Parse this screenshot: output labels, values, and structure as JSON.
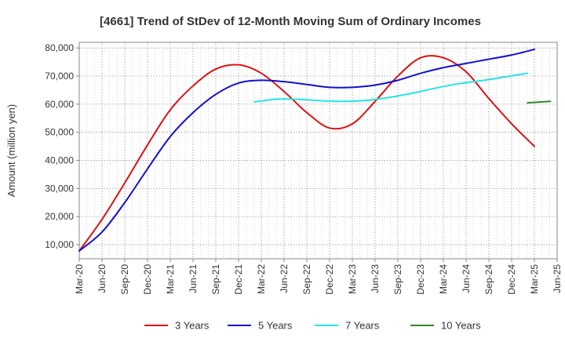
{
  "chart_data": {
    "type": "line",
    "title": "[4661]  Trend of StDev of 12-Month Moving Sum of Ordinary Incomes",
    "xlabel": "",
    "ylabel": "Amount (million yen)",
    "ylim": [
      5000,
      82000
    ],
    "y_ticks": [
      10000,
      20000,
      30000,
      40000,
      50000,
      60000,
      70000,
      80000
    ],
    "y_tick_labels": [
      "10,000",
      "20,000",
      "30,000",
      "40,000",
      "50,000",
      "60,000",
      "70,000",
      "80,000"
    ],
    "x_tick_labels": [
      "Mar-20",
      "Jun-20",
      "Sep-20",
      "Dec-20",
      "Mar-21",
      "Jun-21",
      "Sep-21",
      "Dec-21",
      "Mar-22",
      "Jun-22",
      "Sep-22",
      "Dec-22",
      "Mar-23",
      "Jun-23",
      "Sep-23",
      "Dec-23",
      "Mar-24",
      "Jun-24",
      "Sep-24",
      "Dec-24",
      "Mar-25",
      "Jun-25"
    ],
    "grid": true,
    "legend_position": "bottom",
    "series": [
      {
        "name": "3 Years",
        "color": "#dd1111",
        "start_index": 0,
        "values": [
          7800,
          19000,
          32000,
          45500,
          58000,
          66500,
          72500,
          74000,
          71000,
          64500,
          57000,
          51500,
          53000,
          61000,
          70000,
          76500,
          76500,
          71500,
          62000,
          53000,
          45000
        ]
      },
      {
        "name": "5 Years",
        "color": "#1111cc",
        "start_index": 0,
        "values": [
          7800,
          14500,
          25000,
          37000,
          48500,
          57000,
          63500,
          67500,
          68500,
          68000,
          67000,
          66000,
          66000,
          66800,
          68500,
          71000,
          73000,
          74500,
          76000,
          77500,
          79500
        ]
      },
      {
        "name": "7 Years",
        "color": "#22e5e5",
        "start_index": 7.7,
        "values": [
          60800,
          61800,
          61700,
          61200,
          61000,
          61400,
          62500,
          64000,
          65800,
          67300,
          68400,
          69700,
          71000
        ]
      },
      {
        "name": "10 Years",
        "color": "#2a8a2a",
        "start_index": 19.7,
        "values": [
          60500,
          61000
        ]
      }
    ]
  }
}
